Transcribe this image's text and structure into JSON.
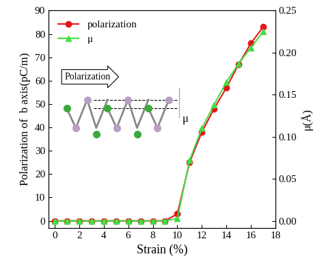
{
  "chart_data": {
    "type": "line",
    "x_label": "Strain (%)",
    "y_label": "Polarization of  b axis(pC/m)",
    "y2_label": "μ(Å)",
    "annotations": [
      "Polarization",
      "μ"
    ],
    "xlim": [
      -0.5,
      18
    ],
    "xticks": [
      0,
      2,
      4,
      6,
      8,
      10,
      12,
      14,
      16,
      18
    ],
    "ylim": [
      -3,
      90
    ],
    "yticks": [
      0,
      10,
      20,
      30,
      40,
      50,
      60,
      70,
      80,
      90
    ],
    "y2lim": [
      -0.0083,
      0.25
    ],
    "y2ticks": [
      {
        "value": 0,
        "label": "0.00"
      },
      {
        "value": 0.05,
        "label": "0.05"
      },
      {
        "value": 0.1,
        "label": "0.10"
      },
      {
        "value": 0.15,
        "label": "0.15"
      },
      {
        "value": 0.2,
        "label": "0.20"
      },
      {
        "value": 0.25,
        "label": "0.25"
      }
    ],
    "legend": "upper left",
    "series": [
      {
        "name": "polarization",
        "color": "#e8141b",
        "marker": "circle",
        "line_style": "solid",
        "x": [
          0,
          1,
          2,
          3,
          4,
          5,
          6,
          7,
          8,
          9,
          10,
          11,
          12,
          13,
          14,
          15,
          16,
          17
        ],
        "values": [
          0,
          0,
          0,
          0,
          0,
          0,
          0,
          0,
          0,
          0,
          3,
          25,
          38,
          48,
          57,
          67,
          76,
          83
        ]
      },
      {
        "name": "μ",
        "color": "#44dd44",
        "marker": "triangle",
        "line_style": "solid",
        "axis": "y2",
        "x": [
          0,
          1,
          2,
          3,
          4,
          5,
          6,
          7,
          8,
          9,
          10,
          11,
          12,
          13,
          14,
          15,
          16,
          17
        ],
        "values": [
          0,
          0,
          0,
          0,
          0,
          0,
          0,
          0,
          0,
          0,
          0.003,
          0.072,
          0.11,
          0.138,
          0.165,
          0.187,
          0.206,
          0.225
        ]
      }
    ]
  }
}
